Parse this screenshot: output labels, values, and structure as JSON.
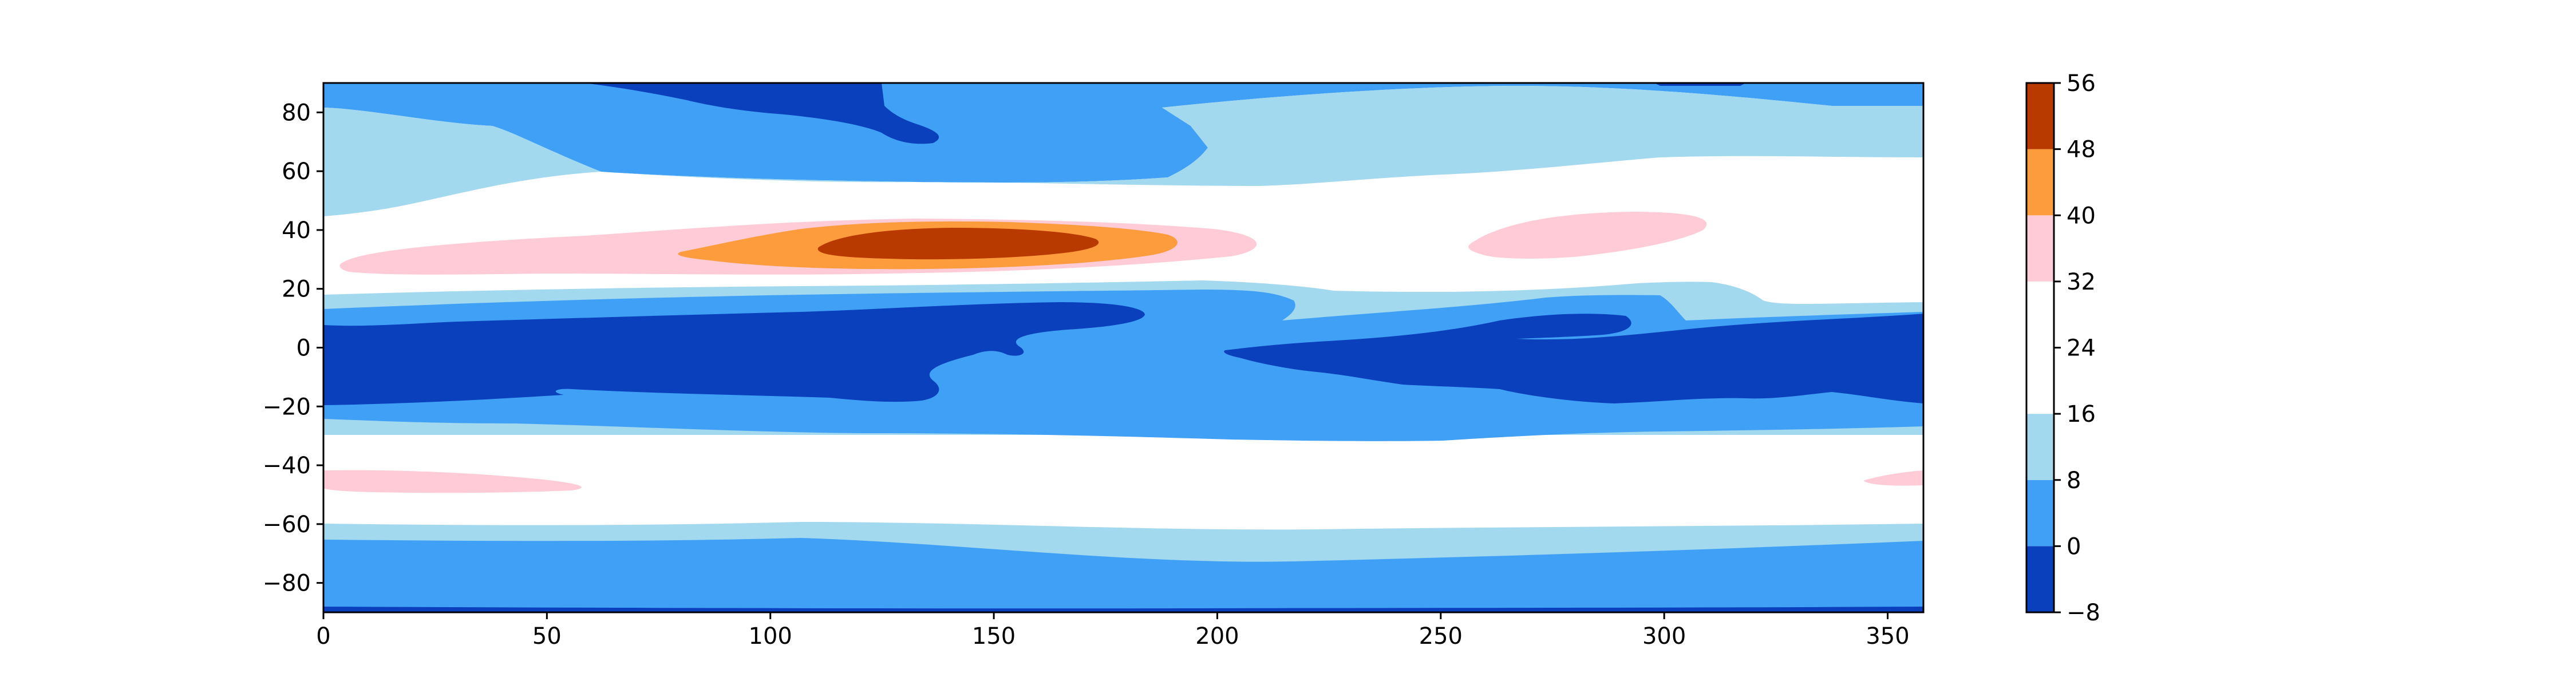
{
  "chart_data": {
    "type": "contourf",
    "title": "",
    "xlabel": "",
    "ylabel": "",
    "xlim": [
      0,
      358
    ],
    "ylim": [
      -90,
      90
    ],
    "x_ticks": [
      0,
      50,
      100,
      150,
      200,
      250,
      300,
      350
    ],
    "y_ticks": [
      -80,
      -60,
      -40,
      -20,
      0,
      20,
      40,
      60,
      80
    ],
    "x_tick_labels": [
      "0",
      "50",
      "100",
      "150",
      "200",
      "250",
      "300",
      "350"
    ],
    "y_tick_labels": [
      "−80",
      "−60",
      "−40",
      "−20",
      "0",
      "20",
      "40",
      "60",
      "80"
    ],
    "grid": false,
    "colorbar": {
      "placement": "right",
      "levels": [
        -8,
        0,
        8,
        16,
        24,
        32,
        40,
        48,
        56
      ],
      "tick_labels": [
        "−8",
        "0",
        "8",
        "16",
        "24",
        "32",
        "40",
        "48",
        "56"
      ],
      "colors": [
        "#0b40bd",
        "#40a0f5",
        "#a2d9ef",
        "#ffffff",
        "#ffffff",
        "#ffcbd7",
        "#fd9c3c",
        "#b93a00"
      ]
    },
    "bands": {
      "north_polar": [
        {
          "level": "0 to 8",
          "lat": [
            80,
            90
          ]
        },
        {
          "level": "8 to 16",
          "lat": [
            50,
            80
          ]
        },
        {
          "level": "-8 to 0",
          "lat": [
            70,
            90
          ],
          "lon": [
            60,
            135
          ]
        }
      ],
      "midlatitude_north": [
        {
          "level": "16 to 32",
          "lat": [
            18,
            48
          ]
        },
        {
          "level": "32 to 40",
          "lat": [
            24,
            42
          ],
          "lon": [
            5,
            210
          ]
        },
        {
          "level": "32 to 40",
          "lat": [
            28,
            45
          ],
          "lon": [
            255,
            310
          ]
        },
        {
          "level": "40 to 48",
          "lat": [
            27,
            41
          ],
          "lon": [
            80,
            190
          ]
        },
        {
          "level": "48 to 56",
          "lat": [
            30,
            40
          ],
          "lon": [
            110,
            175
          ]
        }
      ],
      "tropics": [
        {
          "level": "8 to 16",
          "lat": [
            13,
            18
          ]
        },
        {
          "level": "0 to 8",
          "lat": [
            -25,
            13
          ]
        },
        {
          "level": "-8 to 0",
          "lat": [
            -20,
            10
          ],
          "lon": [
            0,
            185
          ]
        },
        {
          "level": "-8 to 0",
          "lat": [
            -20,
            12
          ],
          "lon": [
            200,
            358
          ]
        }
      ],
      "midlatitude_south": [
        {
          "level": "8 to 16",
          "lat": [
            -34,
            -25
          ]
        },
        {
          "level": "16 to 32",
          "lat": [
            -58,
            -30
          ]
        },
        {
          "level": "32 to 40",
          "lat": [
            -48,
            -41
          ],
          "lon": [
            0,
            60
          ]
        },
        {
          "level": "32 to 40",
          "lat": [
            -46,
            -41
          ],
          "lon": [
            345,
            358
          ]
        }
      ],
      "south_polar": [
        {
          "level": "8 to 16",
          "lat": [
            -66,
            -58
          ]
        },
        {
          "level": "0 to 8",
          "lat": [
            -90,
            -66
          ]
        },
        {
          "level": "-8 to 0",
          "lat": [
            -90,
            -88
          ]
        }
      ]
    }
  }
}
